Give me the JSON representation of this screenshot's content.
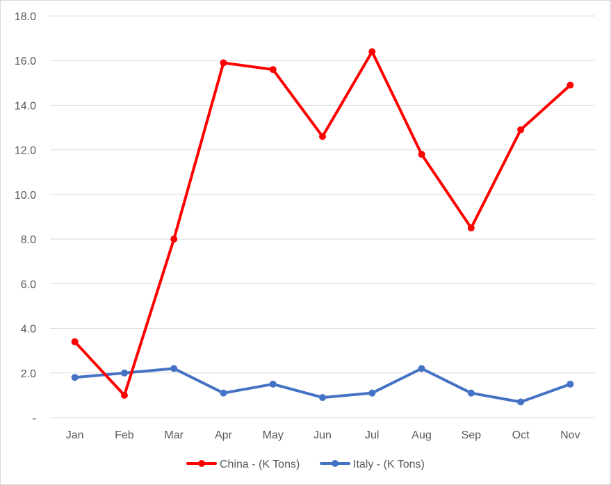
{
  "chart_data": {
    "type": "line",
    "categories": [
      "Jan",
      "Feb",
      "Mar",
      "Apr",
      "May",
      "Jun",
      "Jul",
      "Aug",
      "Sep",
      "Oct",
      "Nov"
    ],
    "ylim": [
      0,
      18
    ],
    "yticks": [
      0,
      2,
      4,
      6,
      8,
      10,
      12,
      14,
      16,
      18
    ],
    "ytick_labels": [
      "-",
      "2.0",
      "4.0",
      "6.0",
      "8.0",
      "10.0",
      "12.0",
      "14.0",
      "16.0",
      "18.0"
    ],
    "grid": true,
    "legend_position": "bottom",
    "series": [
      {
        "name": "China - (K Tons)",
        "color": "#ff0000",
        "values": [
          3.4,
          1.0,
          8.0,
          15.9,
          15.6,
          12.6,
          16.4,
          11.8,
          8.5,
          12.9,
          14.9
        ]
      },
      {
        "name": "Italy - (K Tons)",
        "color": "#4472c4",
        "values": [
          1.8,
          2.0,
          2.2,
          1.1,
          1.5,
          0.9,
          1.1,
          2.2,
          1.1,
          0.7,
          1.5
        ]
      }
    ]
  }
}
